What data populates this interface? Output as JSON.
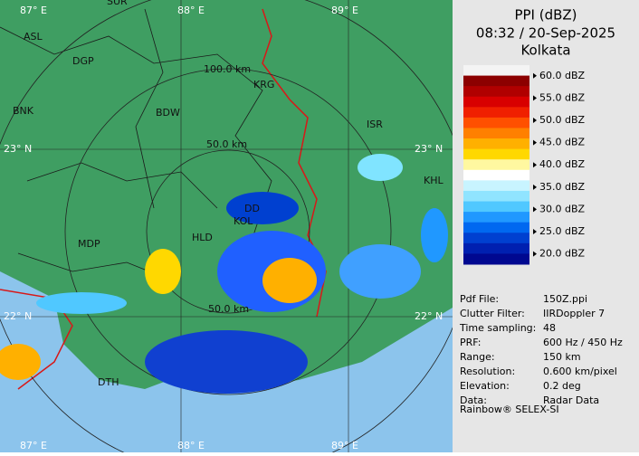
{
  "header": {
    "title": "PPI (dBZ)",
    "time": "08:32 / 20-Sep-2025",
    "site": "Kolkata"
  },
  "legend": {
    "labels": [
      "60.0 dBZ",
      "55.0 dBZ",
      "50.0 dBZ",
      "45.0 dBZ",
      "40.0 dBZ",
      "35.0 dBZ",
      "30.0 dBZ",
      "25.0 dBZ",
      "20.0 dBZ"
    ],
    "colors": [
      "#f4f4f4",
      "#8c0000",
      "#b00000",
      "#d80000",
      "#f02000",
      "#ff5000",
      "#ff8000",
      "#ffb000",
      "#ffd800",
      "#fff8a0",
      "#ffffff",
      "#c8f4ff",
      "#90e4ff",
      "#50c8ff",
      "#2098ff",
      "#0068f0",
      "#0040d0",
      "#0020b0",
      "#000890"
    ]
  },
  "info": [
    [
      "Pdf File:",
      "150Z.ppi"
    ],
    [
      "Clutter Filter:",
      "IIRDoppler 7"
    ],
    [
      "Time sampling:",
      "48"
    ],
    [
      "PRF:",
      "600 Hz / 450 Hz"
    ],
    [
      "Range:",
      "150 km"
    ],
    [
      "Resolution:",
      "0.600 km/pixel"
    ],
    [
      "Elevation:",
      "0.2 deg"
    ],
    [
      "Data:",
      "Radar Data"
    ]
  ],
  "footer": "Rainbow® SELEX-SI",
  "map": {
    "lon_top": [
      "87° E",
      "88° E",
      "89° E"
    ],
    "lon_bottom": [
      "87° E",
      "88° E",
      "89° E"
    ],
    "lat": [
      "23° N",
      "22° N",
      "23° N",
      "22° N"
    ],
    "rings": [
      "100.0 km",
      "50.0 km",
      "50.0 km"
    ],
    "cities": [
      "SUR",
      "ASL",
      "DGP",
      "KRG",
      "BNK",
      "BDW",
      "ISR",
      "KHL",
      "MDP",
      "HLD",
      "KOL",
      "DD",
      "DTH"
    ]
  }
}
